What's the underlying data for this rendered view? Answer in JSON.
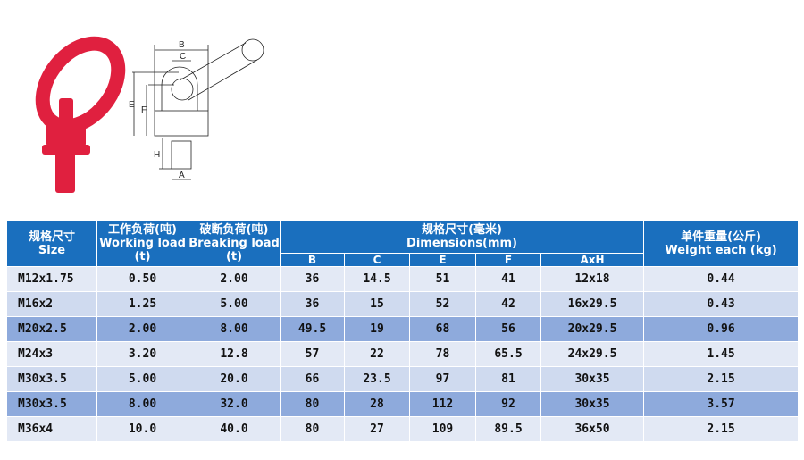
{
  "colors": {
    "header": "#1a6fbe",
    "row_light": "#e3e9f5",
    "row_mid": "#cfdaef",
    "row_dark": "#8eaadc",
    "product": "#e0203f"
  },
  "diagram_labels": {
    "B": "B",
    "C": "C",
    "E": "E",
    "F": "F",
    "H": "H",
    "A": "A"
  },
  "headers": {
    "size": [
      "规格尺寸",
      "Size"
    ],
    "working": [
      "工作负荷(吨)",
      "Working load",
      "(t)"
    ],
    "breaking": [
      "破断负荷(吨)",
      "Breaking load",
      "(t)"
    ],
    "dims": [
      "规格尺寸(毫米)",
      "Dimensions(mm)"
    ],
    "weight": [
      "单件重量(公斤)",
      "Weight each (kg)"
    ],
    "sub": [
      "B",
      "C",
      "E",
      "F",
      "AxH"
    ]
  },
  "rows": [
    [
      "M12x1.75",
      "0.50",
      "2.00",
      "36",
      "14.5",
      "51",
      "41",
      "12x18",
      "0.44"
    ],
    [
      "M16x2",
      "1.25",
      "5.00",
      "36",
      "15",
      "52",
      "42",
      "16x29.5",
      "0.43"
    ],
    [
      "M20x2.5",
      "2.00",
      "8.00",
      "49.5",
      "19",
      "68",
      "56",
      "20x29.5",
      "0.96"
    ],
    [
      "M24x3",
      "3.20",
      "12.8",
      "57",
      "22",
      "78",
      "65.5",
      "24x29.5",
      "1.45"
    ],
    [
      "M30x3.5",
      "5.00",
      "20.0",
      "66",
      "23.5",
      "97",
      "81",
      "30x35",
      "2.15"
    ],
    [
      "M30x3.5",
      "8.00",
      "32.0",
      "80",
      "28",
      "112",
      "92",
      "30x35",
      "3.57"
    ],
    [
      "M36x4",
      "10.0",
      "40.0",
      "80",
      "27",
      "109",
      "89.5",
      "36x50",
      "2.15"
    ]
  ]
}
